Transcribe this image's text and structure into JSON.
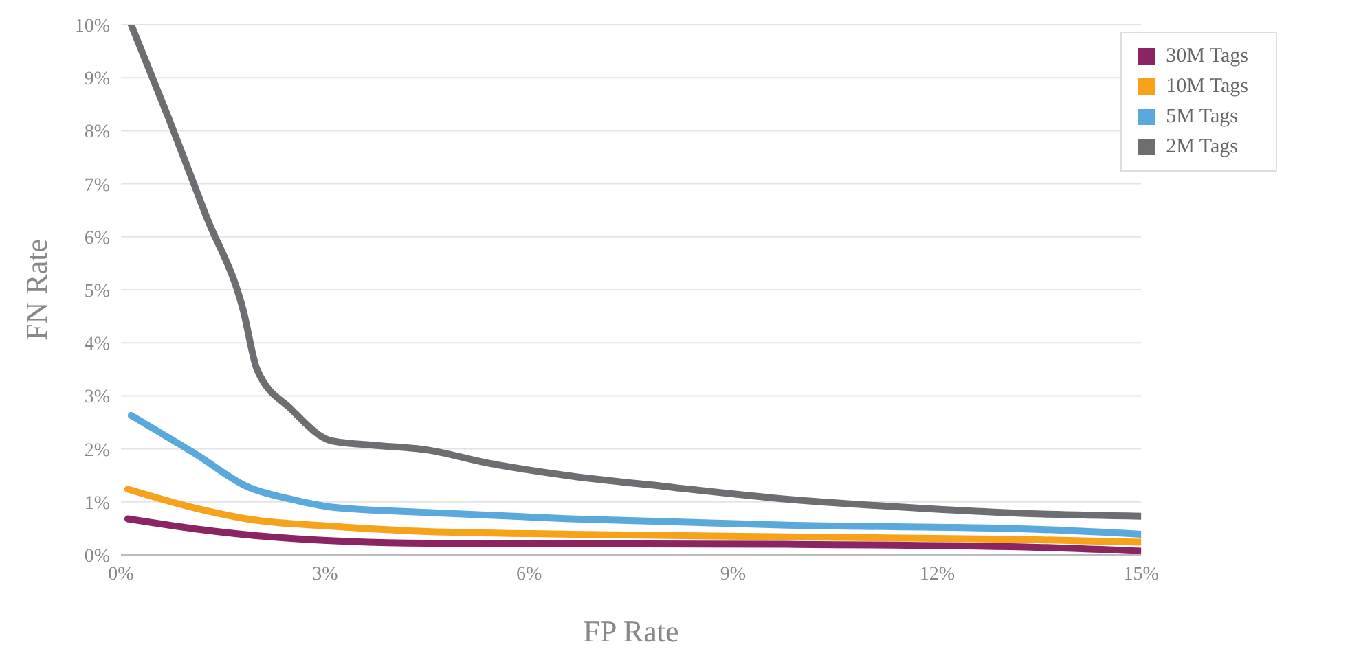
{
  "chart_data": {
    "type": "line",
    "xlabel": "FP Rate",
    "ylabel": "FN Rate",
    "xlim": [
      0,
      15
    ],
    "ylim": [
      0,
      10
    ],
    "xticks": [
      {
        "value": 0,
        "label": "0%"
      },
      {
        "value": 3,
        "label": "3%"
      },
      {
        "value": 6,
        "label": "6%"
      },
      {
        "value": 9,
        "label": "9%"
      },
      {
        "value": 12,
        "label": "12%"
      },
      {
        "value": 15,
        "label": "15%"
      }
    ],
    "yticks": [
      {
        "value": 0,
        "label": "0%"
      },
      {
        "value": 1,
        "label": "1%"
      },
      {
        "value": 2,
        "label": "2%"
      },
      {
        "value": 3,
        "label": "3%"
      },
      {
        "value": 4,
        "label": "4%"
      },
      {
        "value": 5,
        "label": "5%"
      },
      {
        "value": 6,
        "label": "6%"
      },
      {
        "value": 7,
        "label": "7%"
      },
      {
        "value": 8,
        "label": "8%"
      },
      {
        "value": 9,
        "label": "9%"
      },
      {
        "value": 10,
        "label": "10%"
      }
    ],
    "grid": "y",
    "legend": "top right",
    "marker": "none",
    "line_style": "solid",
    "series": [
      {
        "name": "30M Tags",
        "color": "#8b2462",
        "x": [
          0.1,
          1.1,
          2.2,
          4.5,
          9.8,
          13.3,
          15
        ],
        "values": [
          0.68,
          0.49,
          0.34,
          0.22,
          0.2,
          0.15,
          0.07
        ]
      },
      {
        "name": "10M Tags",
        "color": "#f7a21b",
        "x": [
          0.1,
          1.1,
          1.95,
          3.1,
          4.5,
          6.6,
          9.8,
          13.3,
          15
        ],
        "values": [
          1.24,
          0.88,
          0.66,
          0.54,
          0.44,
          0.39,
          0.34,
          0.29,
          0.24
        ]
      },
      {
        "name": "5M Tags",
        "color": "#5aa9dc",
        "x": [
          0.15,
          1.1,
          1.85,
          2.5,
          3.1,
          4.5,
          6.6,
          9.8,
          13.3,
          15
        ],
        "values": [
          2.63,
          1.9,
          1.29,
          1.05,
          0.9,
          0.8,
          0.68,
          0.56,
          0.49,
          0.39
        ]
      },
      {
        "name": "2M Tags",
        "color": "#6d6e71",
        "x": [
          0.15,
          0.7,
          1.25,
          1.8,
          2.0,
          2.5,
          3.1,
          3.7,
          4.5,
          5.4,
          6.6,
          8,
          9.8,
          11.5,
          13.3,
          15
        ],
        "values": [
          10,
          8.24,
          6.4,
          4.6,
          3.5,
          2.75,
          2.15,
          2.07,
          1.98,
          1.73,
          1.49,
          1.29,
          1.05,
          0.9,
          0.78,
          0.73
        ]
      }
    ]
  }
}
